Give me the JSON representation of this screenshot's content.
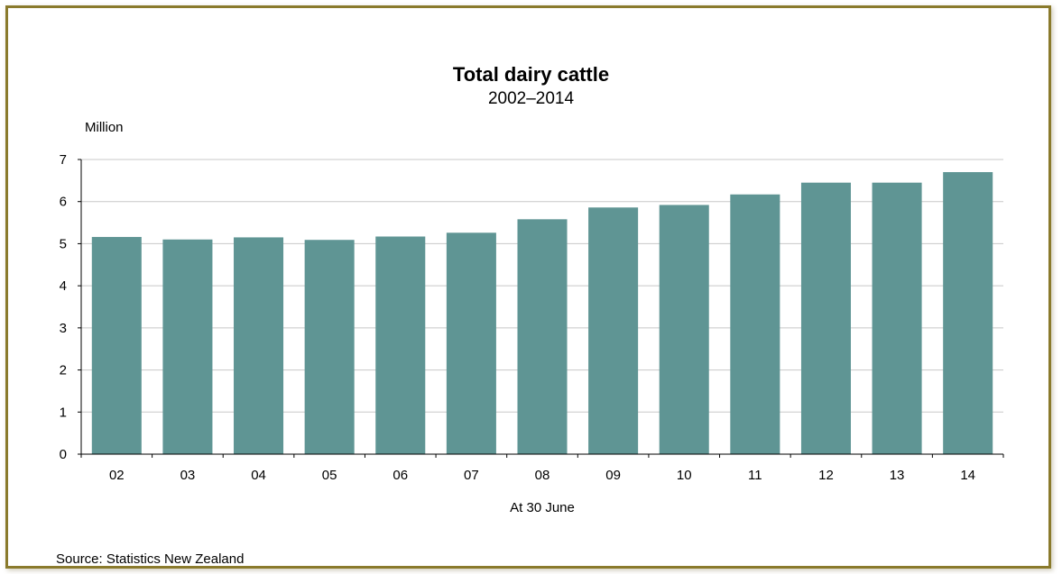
{
  "chart_data": {
    "type": "bar",
    "title": "Total dairy cattle",
    "subtitle": "2002–2014",
    "ylabel": "Million",
    "xlabel": "At 30 June",
    "categories": [
      "02",
      "03",
      "04",
      "05",
      "06",
      "07",
      "08",
      "09",
      "10",
      "11",
      "12",
      "13",
      "14"
    ],
    "values": [
      5.16,
      5.1,
      5.15,
      5.09,
      5.17,
      5.26,
      5.58,
      5.86,
      5.92,
      6.17,
      6.45,
      6.45,
      6.7
    ],
    "yticks": [
      0,
      1,
      2,
      3,
      4,
      5,
      6,
      7
    ],
    "ylim": [
      0,
      7
    ],
    "grid": true,
    "bar_color": "#5f9594",
    "source": "Source: Statistics New Zealand"
  }
}
